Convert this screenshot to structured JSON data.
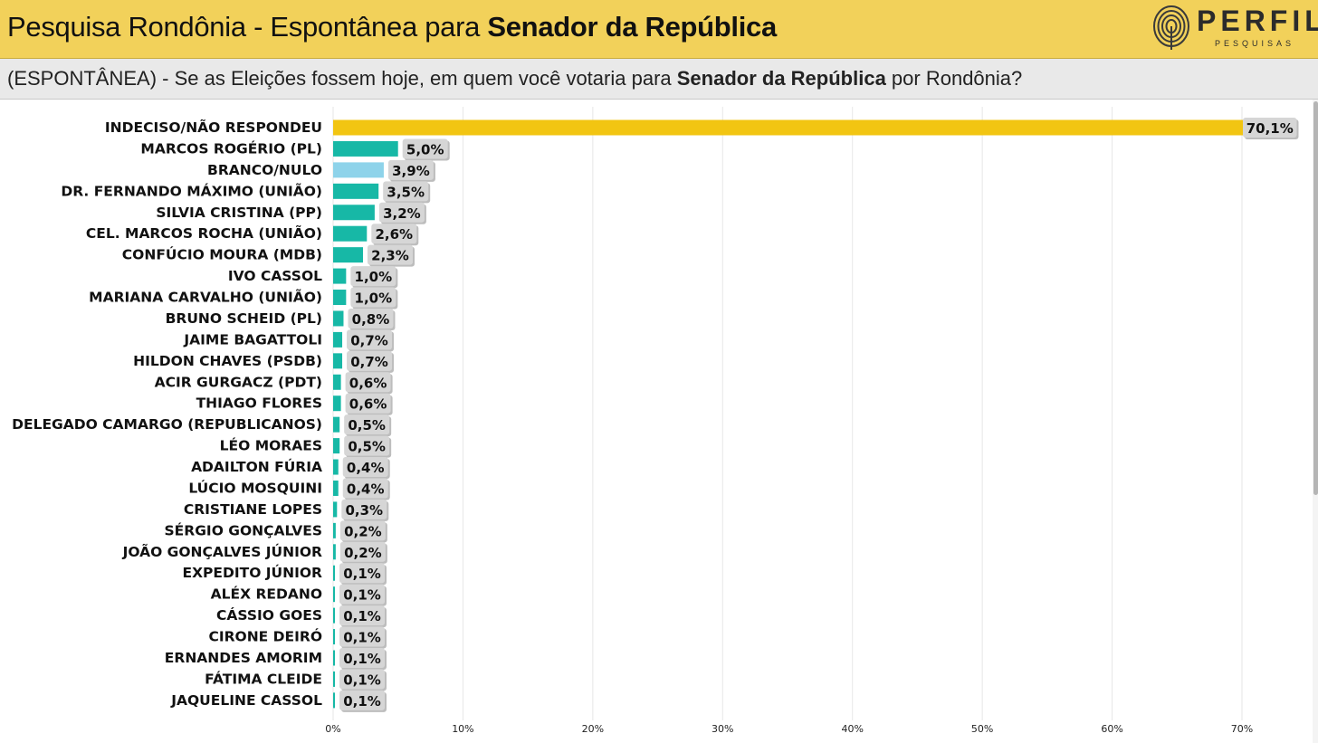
{
  "header": {
    "title_prefix": "Pesquisa Rondônia - Espontânea para ",
    "title_bold": "Senador da República",
    "logo_name": "PERFIL",
    "logo_sub": "PESQUISAS",
    "logo_icon": "fingerprint-icon"
  },
  "question": {
    "prefix": "(ESPONTÂNEA) - Se as Eleições fossem hoje, em quem você votaria para ",
    "bold": "Senador da República",
    "suffix": " por Rondônia?"
  },
  "colors": {
    "header_bg": "#f2d15a",
    "highlight_bar": "#f2c512",
    "candidate_bar": "#17b8a6",
    "blank_bar": "#8ed3ea",
    "value_box": "#d6d6d6",
    "grid": "#e6e6e6"
  },
  "chart_data": {
    "type": "bar",
    "orientation": "horizontal",
    "categories": [
      "INDECISO/NÃO RESPONDEU",
      "MARCOS ROGÉRIO (PL)",
      "BRANCO/NULO",
      "DR. FERNANDO MÁXIMO (UNIÃO)",
      "SILVIA CRISTINA (PP)",
      "CEL. MARCOS ROCHA (UNIÃO)",
      "CONFÚCIO MOURA (MDB)",
      "IVO CASSOL",
      "MARIANA CARVALHO (UNIÃO)",
      "BRUNO SCHEID (PL)",
      "JAIME BAGATTOLI",
      "HILDON CHAVES (PSDB)",
      "ACIR GURGACZ (PDT)",
      "THIAGO FLORES",
      "DELEGADO CAMARGO (REPUBLICANOS)",
      "LÉO MORAES",
      "ADAILTON FÚRIA",
      "LÚCIO MOSQUINI",
      "CRISTIANE LOPES",
      "SÉRGIO GONÇALVES",
      "JOÃO GONÇALVES JÚNIOR",
      "EXPEDITO JÚNIOR",
      "ALÉX REDANO",
      "CÁSSIO GOES",
      "CIRONE DEIRÓ",
      "ERNANDES AMORIM",
      "FÁTIMA CLEIDE",
      "JAQUELINE CASSOL"
    ],
    "values": [
      70.1,
      5.0,
      3.9,
      3.5,
      3.2,
      2.6,
      2.3,
      1.0,
      1.0,
      0.8,
      0.7,
      0.7,
      0.6,
      0.6,
      0.5,
      0.5,
      0.4,
      0.4,
      0.3,
      0.2,
      0.2,
      0.1,
      0.1,
      0.1,
      0.1,
      0.1,
      0.1,
      0.1
    ],
    "value_labels": [
      "70,1%",
      "5,0%",
      "3,9%",
      "3,5%",
      "3,2%",
      "2,6%",
      "2,3%",
      "1,0%",
      "1,0%",
      "0,8%",
      "0,7%",
      "0,7%",
      "0,6%",
      "0,6%",
      "0,5%",
      "0,5%",
      "0,4%",
      "0,4%",
      "0,3%",
      "0,2%",
      "0,2%",
      "0,1%",
      "0,1%",
      "0,1%",
      "0,1%",
      "0,1%",
      "0,1%",
      "0,1%"
    ],
    "bar_kind": [
      "highlight",
      "candidate",
      "blank",
      "candidate",
      "candidate",
      "candidate",
      "candidate",
      "candidate",
      "candidate",
      "candidate",
      "candidate",
      "candidate",
      "candidate",
      "candidate",
      "candidate",
      "candidate",
      "candidate",
      "candidate",
      "candidate",
      "candidate",
      "candidate",
      "candidate",
      "candidate",
      "candidate",
      "candidate",
      "candidate",
      "candidate",
      "candidate"
    ],
    "xlim": [
      0,
      70
    ],
    "xticks": [
      0,
      10,
      20,
      30,
      40,
      50,
      60,
      70
    ],
    "xtick_labels": [
      "0%",
      "10%",
      "20%",
      "30%",
      "40%",
      "50%",
      "60%",
      "70%"
    ],
    "grid": true,
    "legend": "none"
  }
}
